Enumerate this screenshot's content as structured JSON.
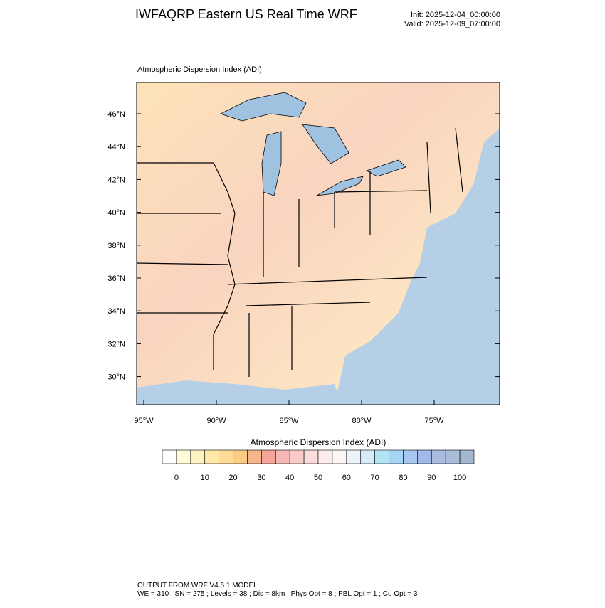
{
  "header": {
    "title": "IWFAQRP Eastern US Real Time WRF",
    "init": "Init: 2025-12-04_00:00:00",
    "valid": "Valid: 2025-12-09_07:00:00"
  },
  "map": {
    "label": "Atmospheric Dispersion Index   (ADI)",
    "lat_labels": [
      "46°N",
      "44°N",
      "42°N",
      "40°N",
      "38°N",
      "36°N",
      "34°N",
      "32°N",
      "30°N"
    ],
    "lon_labels": [
      "95°W",
      "90°W",
      "85°W",
      "80°W",
      "75°W"
    ]
  },
  "colorbar": {
    "title": "Atmospheric Dispersion Index  (ADI)",
    "labels": [
      0,
      10,
      20,
      30,
      40,
      50,
      60,
      70,
      80,
      90,
      100
    ],
    "colors": [
      "#ffffff",
      "#fffbd6",
      "#fff3bf",
      "#ffe9a8",
      "#ffdc95",
      "#fccc85",
      "#f7b58c",
      "#f5a597",
      "#f6b8b4",
      "#f8cbc9",
      "#fadcda",
      "#fceceb",
      "#fbf5f6",
      "#eef2fb",
      "#d6ebf8",
      "#b3e3f5",
      "#a6d6f4",
      "#a7c6f0",
      "#a2b8ea",
      "#a9bce0",
      "#a9bdd8",
      "#a3b8cf"
    ]
  },
  "footer": {
    "line1": "OUTPUT FROM WRF V4.6.1 MODEL",
    "line2": "WE = 310 ; SN = 275 ; Levels = 38 ; Dis = 8km ; Phys Opt = 8 ; PBL Opt = 1 ; Cu Opt = 3"
  }
}
